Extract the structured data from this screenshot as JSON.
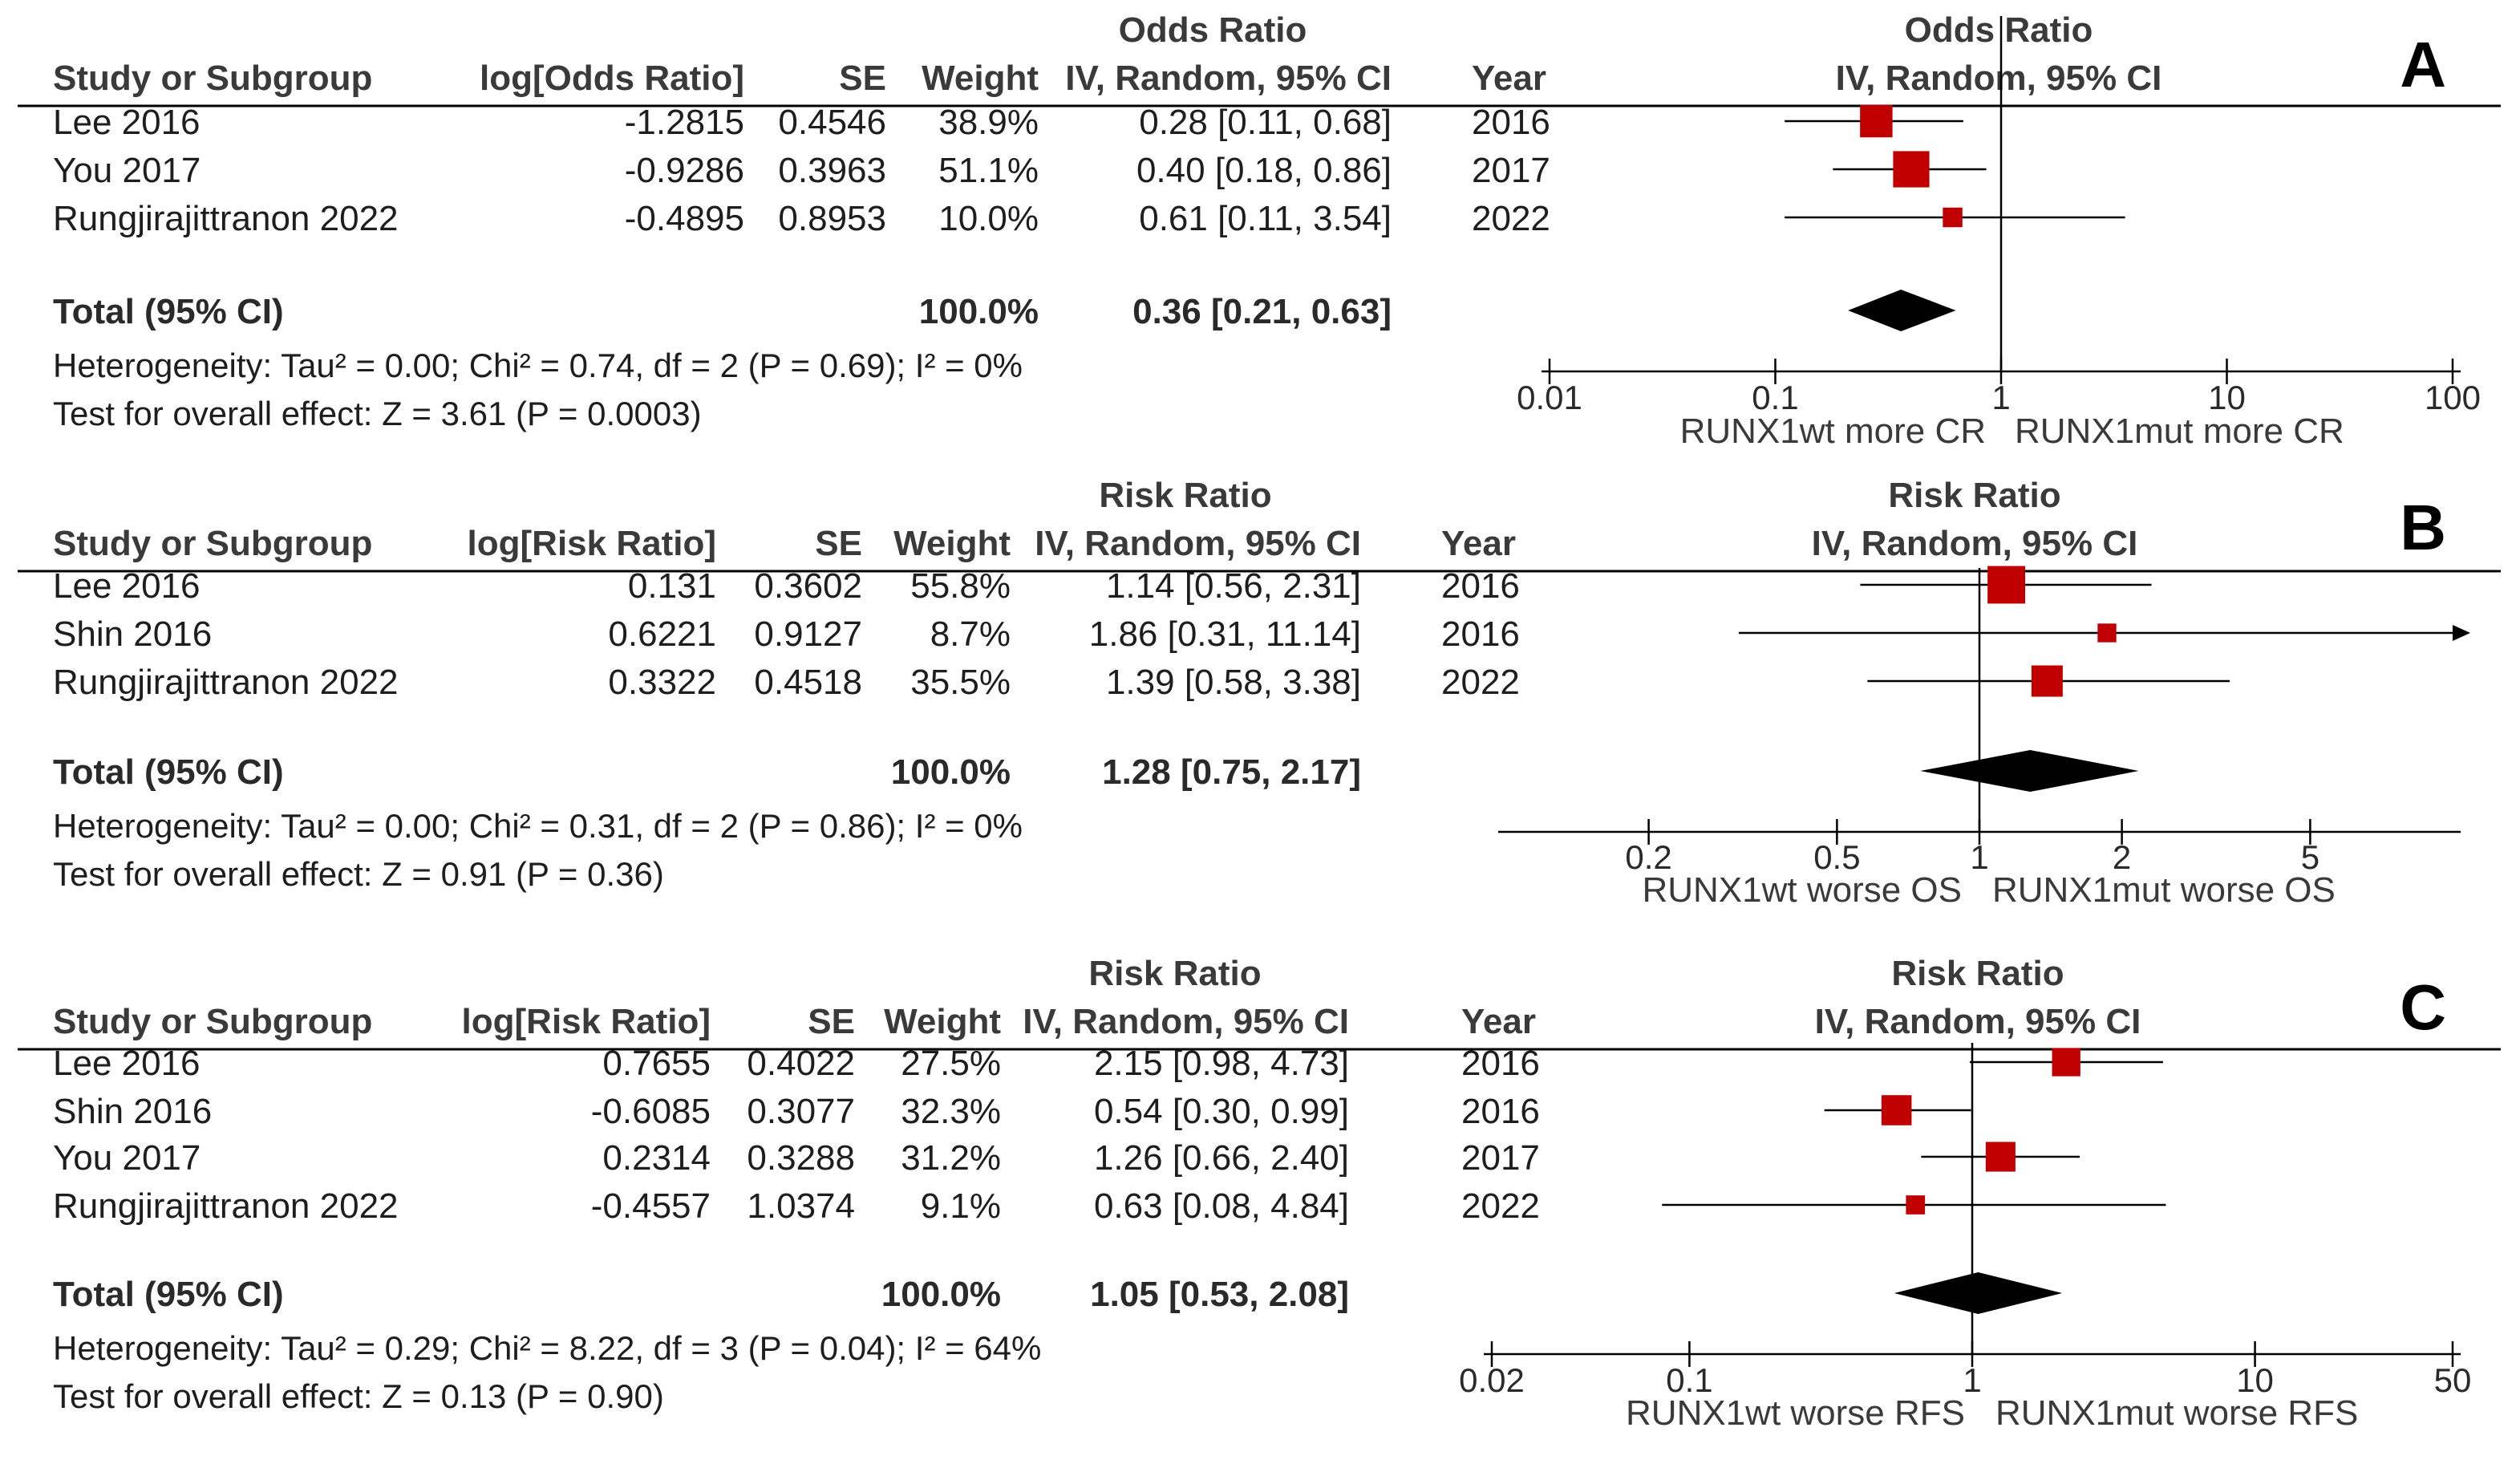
{
  "chart_data": [
    {
      "type": "forest",
      "panel_label": "A",
      "measure_title": "Odds Ratio",
      "columns": {
        "study": "Study or Subgroup",
        "log": "log[Odds Ratio]",
        "se": "SE",
        "weight": "Weight",
        "measure_header": "Odds Ratio",
        "ci": "IV, Random, 95% CI",
        "year": "Year"
      },
      "plot_header": [
        "Odds Ratio",
        "IV, Random, 95% CI"
      ],
      "studies": [
        {
          "name": "Lee 2016",
          "log": "-1.2815",
          "se": "0.4546",
          "weight": "38.9%",
          "ci_text": "0.28 [0.11, 0.68]",
          "year": "2016",
          "est": 0.28,
          "lo": 0.11,
          "hi": 0.68,
          "w": 38.9
        },
        {
          "name": "You 2017",
          "log": "-0.9286",
          "se": "0.3963",
          "weight": "51.1%",
          "ci_text": "0.40 [0.18, 0.86]",
          "year": "2017",
          "est": 0.4,
          "lo": 0.18,
          "hi": 0.86,
          "w": 51.1
        },
        {
          "name": "Rungjirajittranon 2022",
          "log": "-0.4895",
          "se": "0.8953",
          "weight": "10.0%",
          "ci_text": "0.61 [0.11, 3.54]",
          "year": "2022",
          "est": 0.61,
          "lo": 0.11,
          "hi": 3.54,
          "w": 10.0
        }
      ],
      "total": {
        "label": "Total (95% CI)",
        "weight": "100.0%",
        "ci_text": "0.36 [0.21, 0.63]",
        "est": 0.36,
        "lo": 0.21,
        "hi": 0.63
      },
      "heterogeneity": "Heterogeneity: Tau² = 0.00; Chi² = 0.74, df = 2 (P = 0.69); I² = 0%",
      "overall": "Test for overall effect: Z = 3.61 (P = 0.0003)",
      "axis": {
        "scale": "log",
        "min": 0.01,
        "max": 100,
        "ticks": [
          0.01,
          0.1,
          1,
          10,
          100
        ],
        "tick_labels": [
          "0.01",
          "0.1",
          "1",
          "10",
          "100"
        ]
      },
      "favours": [
        "RUNX1wt more CR",
        "RUNX1mut more CR"
      ]
    },
    {
      "type": "forest",
      "panel_label": "B",
      "measure_title": "Risk Ratio",
      "columns": {
        "study": "Study or Subgroup",
        "log": "log[Risk Ratio]",
        "se": "SE",
        "weight": "Weight",
        "measure_header": "Risk Ratio",
        "ci": "IV, Random, 95% CI",
        "year": "Year"
      },
      "plot_header": [
        "Risk Ratio",
        "IV, Random, 95% CI"
      ],
      "studies": [
        {
          "name": "Lee 2016",
          "log": "0.131",
          "se": "0.3602",
          "weight": "55.8%",
          "ci_text": "1.14 [0.56, 2.31]",
          "year": "2016",
          "est": 1.14,
          "lo": 0.56,
          "hi": 2.31,
          "w": 55.8
        },
        {
          "name": "Shin 2016",
          "log": "0.6221",
          "se": "0.9127",
          "weight": "8.7%",
          "ci_text": "1.86 [0.31, 11.14]",
          "year": "2016",
          "est": 1.86,
          "lo": 0.31,
          "hi": 11.14,
          "w": 8.7
        },
        {
          "name": "Rungjirajittranon 2022",
          "log": "0.3322",
          "se": "0.4518",
          "weight": "35.5%",
          "ci_text": "1.39 [0.58, 3.38]",
          "year": "2022",
          "est": 1.39,
          "lo": 0.58,
          "hi": 3.38,
          "w": 35.5
        }
      ],
      "total": {
        "label": "Total (95% CI)",
        "weight": "100.0%",
        "ci_text": "1.28 [0.75, 2.17]",
        "est": 1.28,
        "lo": 0.75,
        "hi": 2.17
      },
      "heterogeneity": "Heterogeneity: Tau² = 0.00; Chi² = 0.31, df = 2 (P = 0.86); I² = 0%",
      "overall": "Test for overall effect: Z = 0.91 (P = 0.36)",
      "axis": {
        "scale": "log",
        "min": 0.1,
        "max": 10,
        "ticks": [
          0.2,
          0.5,
          1,
          2,
          5
        ],
        "tick_labels": [
          "0.2",
          "0.5",
          "1",
          "2",
          "5"
        ]
      },
      "favours": [
        "RUNX1wt worse OS",
        "RUNX1mut worse OS"
      ]
    },
    {
      "type": "forest",
      "panel_label": "C",
      "measure_title": "Risk Ratio",
      "columns": {
        "study": "Study or Subgroup",
        "log": "log[Risk Ratio]",
        "se": "SE",
        "weight": "Weight",
        "measure_header": "Risk Ratio",
        "ci": "IV, Random, 95% CI",
        "year": "Year"
      },
      "plot_header": [
        "Risk Ratio",
        "IV, Random, 95% CI"
      ],
      "studies": [
        {
          "name": "Lee 2016",
          "log": "0.7655",
          "se": "0.4022",
          "weight": "27.5%",
          "ci_text": "2.15 [0.98, 4.73]",
          "year": "2016",
          "est": 2.15,
          "lo": 0.98,
          "hi": 4.73,
          "w": 27.5
        },
        {
          "name": "Shin 2016",
          "log": "-0.6085",
          "se": "0.3077",
          "weight": "32.3%",
          "ci_text": "0.54 [0.30, 0.99]",
          "year": "2016",
          "est": 0.54,
          "lo": 0.3,
          "hi": 0.99,
          "w": 32.3
        },
        {
          "name": "You 2017",
          "log": "0.2314",
          "se": "0.3288",
          "weight": "31.2%",
          "ci_text": "1.26 [0.66, 2.40]",
          "year": "2017",
          "est": 1.26,
          "lo": 0.66,
          "hi": 2.4,
          "w": 31.2
        },
        {
          "name": "Rungjirajittranon 2022",
          "log": "-0.4557",
          "se": "1.0374",
          "weight": "9.1%",
          "ci_text": "0.63 [0.08, 4.84]",
          "year": "2022",
          "est": 0.63,
          "lo": 0.08,
          "hi": 4.84,
          "w": 9.1
        }
      ],
      "total": {
        "label": "Total (95% CI)",
        "weight": "100.0%",
        "ci_text": "1.05 [0.53, 2.08]",
        "est": 1.05,
        "lo": 0.53,
        "hi": 2.08
      },
      "heterogeneity": "Heterogeneity: Tau² = 0.29; Chi² = 8.22, df = 3 (P = 0.04); I² = 64%",
      "overall": "Test for overall effect: Z = 0.13 (P = 0.90)",
      "axis": {
        "scale": "log",
        "min": 0.02,
        "max": 50,
        "ticks": [
          0.02,
          0.1,
          1,
          10,
          50
        ],
        "tick_labels": [
          "0.02",
          "0.1",
          "1",
          "10",
          "50"
        ]
      },
      "favours": [
        "RUNX1wt worse RFS",
        "RUNX1mut worse RFS"
      ]
    }
  ],
  "colors": {
    "marker": "#c00000",
    "diamond": "#000000",
    "line": "#000000",
    "text": "#1e1e1e"
  }
}
